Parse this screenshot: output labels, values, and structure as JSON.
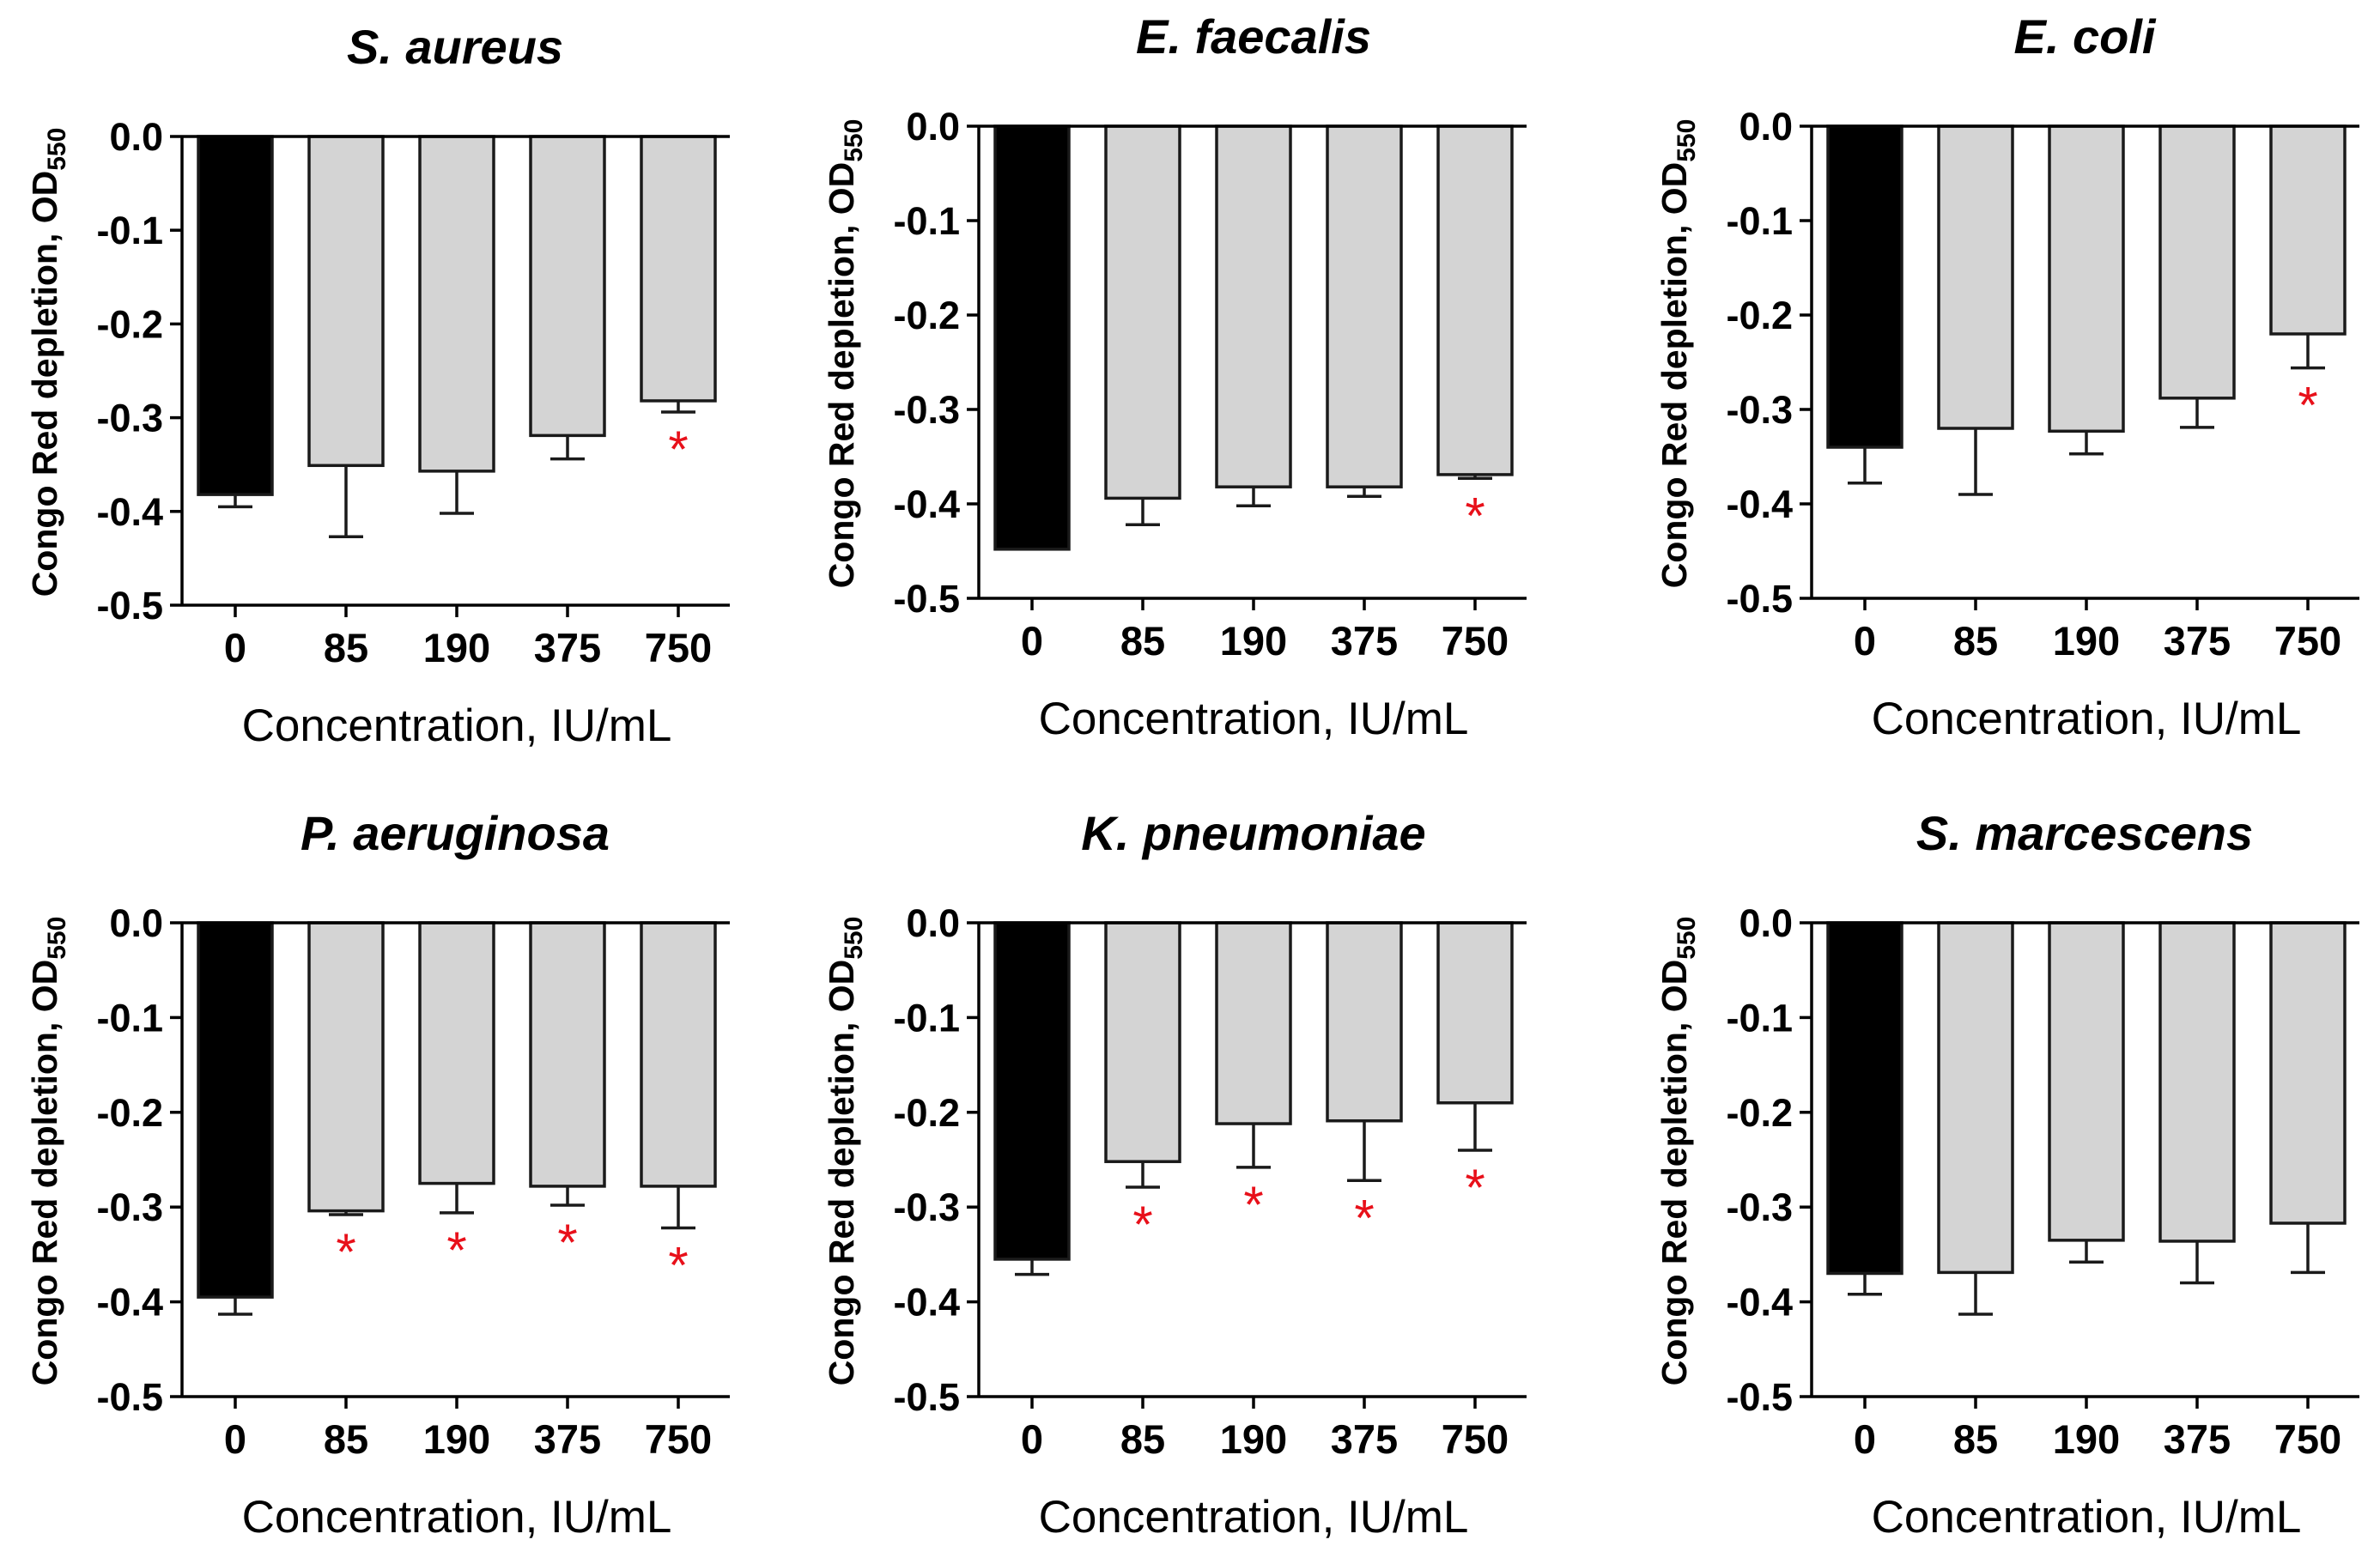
{
  "chart_data": [
    {
      "type": "bar",
      "title": "S. aureus",
      "ylabel": "Congo Red depletion, OD",
      "ylabel_sub": "550",
      "xlabel": "Concentration, IU/mL",
      "categories": [
        "0",
        "85",
        "190",
        "375",
        "750"
      ],
      "values": [
        -0.382,
        -0.351,
        -0.357,
        -0.319,
        -0.282
      ],
      "errors": [
        0.013,
        0.076,
        0.045,
        0.025,
        0.012
      ],
      "significant": [
        false,
        false,
        false,
        false,
        true
      ],
      "significance_marker": "*",
      "ylim": [
        -0.5,
        0.0
      ],
      "yticks": [
        "0.0",
        "-0.1",
        "-0.2",
        "-0.3",
        "-0.4",
        "-0.5"
      ],
      "colors": [
        "#000000",
        "#d4d4d4",
        "#d4d4d4",
        "#d4d4d4",
        "#d4d4d4"
      ],
      "marker_color": "#e8101a"
    },
    {
      "type": "bar",
      "title": "E. faecalis",
      "ylabel": "Congo Red depletion, OD",
      "ylabel_sub": "550",
      "xlabel": "Concentration, IU/mL",
      "categories": [
        "0",
        "85",
        "190",
        "375",
        "750"
      ],
      "values": [
        -0.448,
        -0.394,
        -0.382,
        -0.382,
        -0.369
      ],
      "errors": [
        0.0,
        0.028,
        0.02,
        0.01,
        0.004
      ],
      "significant": [
        false,
        false,
        false,
        false,
        true
      ],
      "significance_marker": "*",
      "ylim": [
        -0.5,
        0.0
      ],
      "yticks": [
        "0.0",
        "-0.1",
        "-0.2",
        "-0.3",
        "-0.4",
        "-0.5"
      ],
      "colors": [
        "#000000",
        "#d4d4d4",
        "#d4d4d4",
        "#d4d4d4",
        "#d4d4d4"
      ],
      "marker_color": "#e8101a"
    },
    {
      "type": "bar",
      "title": "E. coli",
      "ylabel": "Congo Red depletion, OD",
      "ylabel_sub": "550",
      "xlabel": "Concentration, IU/mL",
      "categories": [
        "0",
        "85",
        "190",
        "375",
        "750"
      ],
      "values": [
        -0.34,
        -0.32,
        -0.323,
        -0.288,
        -0.22
      ],
      "errors": [
        0.038,
        0.07,
        0.024,
        0.031,
        0.036
      ],
      "significant": [
        false,
        false,
        false,
        false,
        true
      ],
      "significance_marker": "*",
      "ylim": [
        -0.5,
        0.0
      ],
      "yticks": [
        "0.0",
        "-0.1",
        "-0.2",
        "-0.3",
        "-0.4",
        "-0.5"
      ],
      "colors": [
        "#000000",
        "#d4d4d4",
        "#d4d4d4",
        "#d4d4d4",
        "#d4d4d4"
      ],
      "marker_color": "#e8101a"
    },
    {
      "type": "bar",
      "title": "P. aeruginosa",
      "ylabel": "Congo Red depletion, OD",
      "ylabel_sub": "550",
      "xlabel": "Concentration, IU/mL",
      "categories": [
        "0",
        "85",
        "190",
        "375",
        "750"
      ],
      "values": [
        -0.395,
        -0.304,
        -0.275,
        -0.278,
        -0.278
      ],
      "errors": [
        0.018,
        0.004,
        0.031,
        0.02,
        0.044
      ],
      "significant": [
        false,
        true,
        true,
        true,
        true
      ],
      "significance_marker": "*",
      "ylim": [
        -0.5,
        0.0
      ],
      "yticks": [
        "0.0",
        "-0.1",
        "-0.2",
        "-0.3",
        "-0.4",
        "-0.5"
      ],
      "colors": [
        "#000000",
        "#d4d4d4",
        "#d4d4d4",
        "#d4d4d4",
        "#d4d4d4"
      ],
      "marker_color": "#e8101a"
    },
    {
      "type": "bar",
      "title": "K. pneumoniae",
      "ylabel": "Congo Red depletion, OD",
      "ylabel_sub": "550",
      "xlabel": "Concentration, IU/mL",
      "categories": [
        "0",
        "85",
        "190",
        "375",
        "750"
      ],
      "values": [
        -0.355,
        -0.252,
        -0.212,
        -0.209,
        -0.19
      ],
      "errors": [
        0.016,
        0.027,
        0.046,
        0.063,
        0.05
      ],
      "significant": [
        false,
        true,
        true,
        true,
        true
      ],
      "significance_marker": "*",
      "ylim": [
        -0.5,
        0.0
      ],
      "yticks": [
        "0.0",
        "-0.1",
        "-0.2",
        "-0.3",
        "-0.4",
        "-0.5"
      ],
      "colors": [
        "#000000",
        "#d4d4d4",
        "#d4d4d4",
        "#d4d4d4",
        "#d4d4d4"
      ],
      "marker_color": "#e8101a"
    },
    {
      "type": "bar",
      "title": "S. marcescens",
      "ylabel": "Congo Red depletion, OD",
      "ylabel_sub": "550",
      "xlabel": "Concentration, IU/mL",
      "categories": [
        "0",
        "85",
        "190",
        "375",
        "750"
      ],
      "values": [
        -0.37,
        -0.369,
        -0.335,
        -0.336,
        -0.317
      ],
      "errors": [
        0.022,
        0.044,
        0.023,
        0.044,
        0.052
      ],
      "significant": [
        false,
        false,
        false,
        false,
        false
      ],
      "significance_marker": "*",
      "ylim": [
        -0.5,
        0.0
      ],
      "yticks": [
        "0.0",
        "-0.1",
        "-0.2",
        "-0.3",
        "-0.4",
        "-0.5"
      ],
      "colors": [
        "#000000",
        "#d4d4d4",
        "#d4d4d4",
        "#d4d4d4",
        "#d4d4d4"
      ],
      "marker_color": "#e8101a"
    }
  ]
}
